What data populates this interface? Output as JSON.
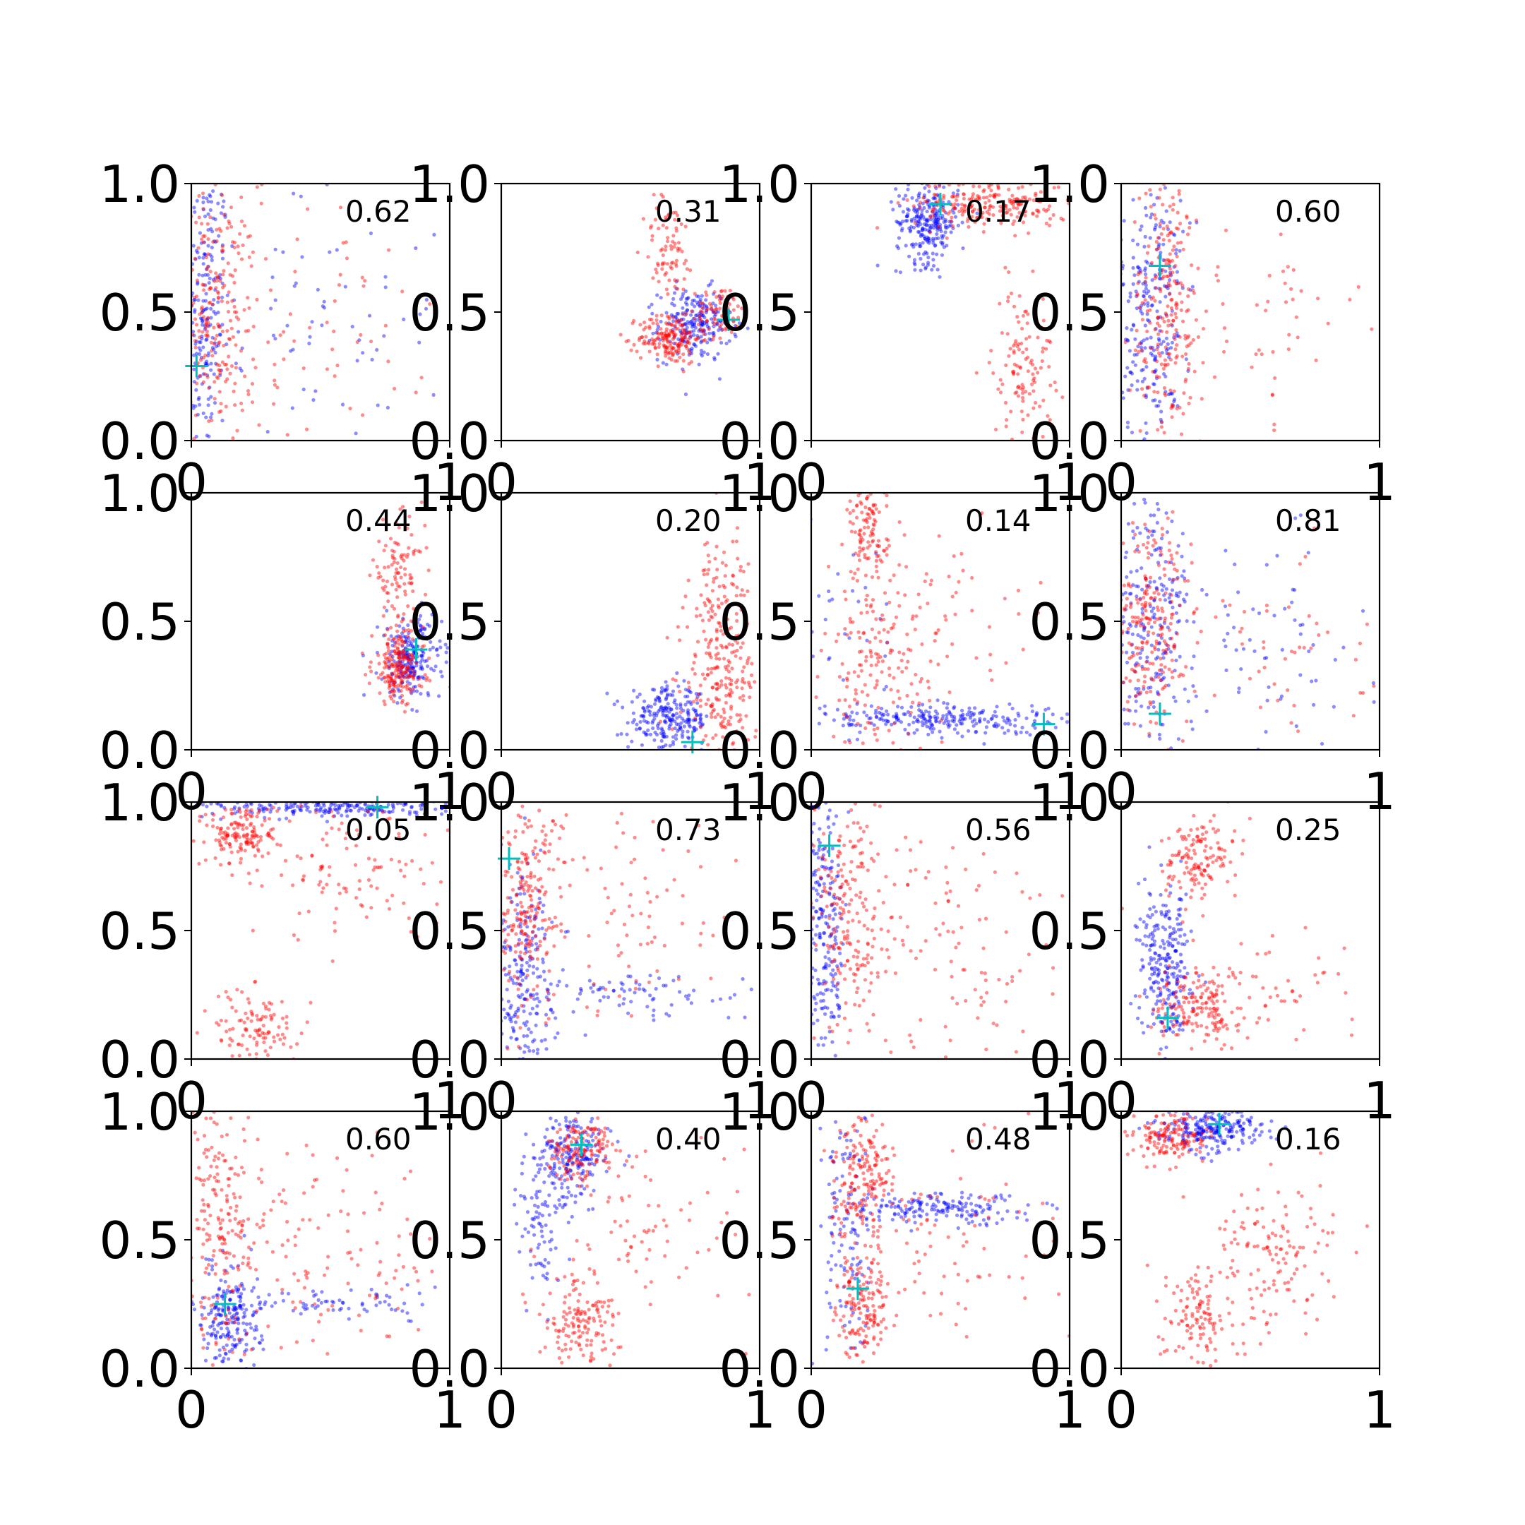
{
  "figure": {
    "colors": {
      "series_a": "#0000ff",
      "series_b": "#ff0000",
      "marker": "#00bfbf",
      "axes": "#000000"
    },
    "xticks": [
      "0",
      "1"
    ],
    "yticks": [
      "0.0",
      "0.5",
      "1.0"
    ]
  },
  "chart_data": [
    {
      "type": "scatter",
      "annotation": "0.62",
      "xlim": [
        0,
        1
      ],
      "ylim": [
        0,
        1
      ],
      "marker": [
        0.02,
        0.29
      ],
      "clusters": {
        "series_a": [
          {
            "cx": 0.05,
            "cy": 0.5,
            "sx": 0.05,
            "sy": 0.3,
            "n": 220
          },
          {
            "cx": 0.4,
            "cy": 0.45,
            "sx": 0.3,
            "sy": 0.3,
            "n": 90
          }
        ],
        "series_b": [
          {
            "cx": 0.1,
            "cy": 0.5,
            "sx": 0.08,
            "sy": 0.25,
            "n": 220
          },
          {
            "cx": 0.4,
            "cy": 0.4,
            "sx": 0.25,
            "sy": 0.25,
            "n": 80
          }
        ]
      }
    },
    {
      "type": "scatter",
      "annotation": "0.31",
      "xlim": [
        0,
        1
      ],
      "ylim": [
        0,
        1
      ],
      "marker": [
        0.88,
        0.47
      ],
      "clusters": {
        "series_a": [
          {
            "cx": 0.75,
            "cy": 0.45,
            "sx": 0.07,
            "sy": 0.07,
            "n": 220
          }
        ],
        "series_b": [
          {
            "cx": 0.65,
            "cy": 0.4,
            "sx": 0.06,
            "sy": 0.05,
            "n": 180
          },
          {
            "cx": 0.65,
            "cy": 0.75,
            "sx": 0.05,
            "sy": 0.1,
            "n": 80
          },
          {
            "cx": 0.85,
            "cy": 0.5,
            "sx": 0.05,
            "sy": 0.05,
            "n": 80
          }
        ]
      }
    },
    {
      "type": "scatter",
      "annotation": "0.17",
      "xlim": [
        0,
        1
      ],
      "ylim": [
        0,
        1
      ],
      "marker": [
        0.5,
        0.92
      ],
      "clusters": {
        "series_a": [
          {
            "cx": 0.45,
            "cy": 0.85,
            "sx": 0.06,
            "sy": 0.08,
            "n": 260
          }
        ],
        "series_b": [
          {
            "cx": 0.7,
            "cy": 0.92,
            "sx": 0.15,
            "sy": 0.05,
            "n": 220
          },
          {
            "cx": 0.82,
            "cy": 0.3,
            "sx": 0.06,
            "sy": 0.15,
            "n": 120
          }
        ]
      }
    },
    {
      "type": "scatter",
      "annotation": "0.60",
      "xlim": [
        0,
        1
      ],
      "ylim": [
        0,
        1
      ],
      "marker": [
        0.15,
        0.68
      ],
      "clusters": {
        "series_a": [
          {
            "cx": 0.12,
            "cy": 0.5,
            "sx": 0.06,
            "sy": 0.3,
            "n": 260
          }
        ],
        "series_b": [
          {
            "cx": 0.18,
            "cy": 0.5,
            "sx": 0.07,
            "sy": 0.3,
            "n": 240
          },
          {
            "cx": 0.5,
            "cy": 0.5,
            "sx": 0.2,
            "sy": 0.2,
            "n": 60
          }
        ]
      }
    },
    {
      "type": "scatter",
      "annotation": "0.44",
      "xlim": [
        0,
        1
      ],
      "ylim": [
        0,
        1
      ],
      "marker": [
        0.87,
        0.39
      ],
      "clusters": {
        "series_a": [
          {
            "cx": 0.85,
            "cy": 0.35,
            "sx": 0.06,
            "sy": 0.08,
            "n": 220
          }
        ],
        "series_b": [
          {
            "cx": 0.8,
            "cy": 0.32,
            "sx": 0.05,
            "sy": 0.07,
            "n": 200
          },
          {
            "cx": 0.8,
            "cy": 0.68,
            "sx": 0.05,
            "sy": 0.1,
            "n": 100
          }
        ]
      }
    },
    {
      "type": "scatter",
      "annotation": "0.20",
      "xlim": [
        0,
        1
      ],
      "ylim": [
        0,
        1
      ],
      "marker": [
        0.74,
        0.03
      ],
      "clusters": {
        "series_a": [
          {
            "cx": 0.65,
            "cy": 0.12,
            "sx": 0.08,
            "sy": 0.06,
            "n": 240
          }
        ],
        "series_b": [
          {
            "cx": 0.85,
            "cy": 0.25,
            "sx": 0.07,
            "sy": 0.15,
            "n": 200
          },
          {
            "cx": 0.85,
            "cy": 0.6,
            "sx": 0.06,
            "sy": 0.15,
            "n": 80
          }
        ]
      }
    },
    {
      "type": "scatter",
      "annotation": "0.14",
      "xlim": [
        0,
        1
      ],
      "ylim": [
        0,
        1
      ],
      "marker": [
        0.9,
        0.1
      ],
      "clusters": {
        "series_a": [
          {
            "cx": 0.5,
            "cy": 0.12,
            "sx": 0.25,
            "sy": 0.03,
            "n": 260
          },
          {
            "cx": 0.1,
            "cy": 0.5,
            "sx": 0.1,
            "sy": 0.3,
            "n": 40
          }
        ],
        "series_b": [
          {
            "cx": 0.22,
            "cy": 0.85,
            "sx": 0.04,
            "sy": 0.1,
            "n": 110
          },
          {
            "cx": 0.25,
            "cy": 0.3,
            "sx": 0.1,
            "sy": 0.2,
            "n": 160
          },
          {
            "cx": 0.5,
            "cy": 0.5,
            "sx": 0.2,
            "sy": 0.2,
            "n": 60
          }
        ]
      }
    },
    {
      "type": "scatter",
      "annotation": "0.81",
      "xlim": [
        0,
        1
      ],
      "ylim": [
        0,
        1
      ],
      "marker": [
        0.15,
        0.14
      ],
      "clusters": {
        "series_a": [
          {
            "cx": 0.12,
            "cy": 0.5,
            "sx": 0.08,
            "sy": 0.25,
            "n": 220
          },
          {
            "cx": 0.5,
            "cy": 0.4,
            "sx": 0.25,
            "sy": 0.2,
            "n": 80
          }
        ],
        "series_b": [
          {
            "cx": 0.12,
            "cy": 0.5,
            "sx": 0.07,
            "sy": 0.2,
            "n": 220
          },
          {
            "cx": 0.5,
            "cy": 0.4,
            "sx": 0.25,
            "sy": 0.2,
            "n": 60
          }
        ]
      }
    },
    {
      "type": "scatter",
      "annotation": "0.05",
      "xlim": [
        0,
        1
      ],
      "ylim": [
        0,
        1
      ],
      "marker": [
        0.72,
        0.98
      ],
      "clusters": {
        "series_a": [
          {
            "cx": 0.55,
            "cy": 0.98,
            "sx": 0.25,
            "sy": 0.02,
            "n": 240
          }
        ],
        "series_b": [
          {
            "cx": 0.2,
            "cy": 0.88,
            "sx": 0.07,
            "sy": 0.06,
            "n": 150
          },
          {
            "cx": 0.25,
            "cy": 0.12,
            "sx": 0.08,
            "sy": 0.08,
            "n": 110
          },
          {
            "cx": 0.6,
            "cy": 0.75,
            "sx": 0.2,
            "sy": 0.15,
            "n": 120
          }
        ]
      }
    },
    {
      "type": "scatter",
      "annotation": "0.73",
      "xlim": [
        0,
        1
      ],
      "ylim": [
        0,
        1
      ],
      "marker": [
        0.03,
        0.78
      ],
      "clusters": {
        "series_a": [
          {
            "cx": 0.08,
            "cy": 0.35,
            "sx": 0.06,
            "sy": 0.2,
            "n": 220
          },
          {
            "cx": 0.5,
            "cy": 0.25,
            "sx": 0.25,
            "sy": 0.05,
            "n": 80
          }
        ],
        "series_b": [
          {
            "cx": 0.1,
            "cy": 0.6,
            "sx": 0.07,
            "sy": 0.2,
            "n": 220
          },
          {
            "cx": 0.5,
            "cy": 0.55,
            "sx": 0.2,
            "sy": 0.2,
            "n": 80
          }
        ]
      }
    },
    {
      "type": "scatter",
      "annotation": "0.56",
      "xlim": [
        0,
        1
      ],
      "ylim": [
        0,
        1
      ],
      "marker": [
        0.07,
        0.83
      ],
      "clusters": {
        "series_a": [
          {
            "cx": 0.05,
            "cy": 0.5,
            "sx": 0.04,
            "sy": 0.3,
            "n": 240
          }
        ],
        "series_b": [
          {
            "cx": 0.15,
            "cy": 0.55,
            "sx": 0.07,
            "sy": 0.25,
            "n": 200
          },
          {
            "cx": 0.55,
            "cy": 0.45,
            "sx": 0.25,
            "sy": 0.25,
            "n": 120
          }
        ]
      }
    },
    {
      "type": "scatter",
      "annotation": "0.25",
      "xlim": [
        0,
        1
      ],
      "ylim": [
        0,
        1
      ],
      "marker": [
        0.18,
        0.16
      ],
      "clusters": {
        "series_a": [
          {
            "cx": 0.17,
            "cy": 0.35,
            "sx": 0.05,
            "sy": 0.15,
            "n": 260
          }
        ],
        "series_b": [
          {
            "cx": 0.3,
            "cy": 0.78,
            "sx": 0.07,
            "sy": 0.08,
            "n": 140
          },
          {
            "cx": 0.3,
            "cy": 0.2,
            "sx": 0.08,
            "sy": 0.07,
            "n": 160
          },
          {
            "cx": 0.55,
            "cy": 0.3,
            "sx": 0.2,
            "sy": 0.15,
            "n": 60
          }
        ]
      }
    },
    {
      "type": "scatter",
      "annotation": "0.60",
      "xlim": [
        0,
        1
      ],
      "ylim": [
        0,
        1
      ],
      "marker": [
        0.13,
        0.25
      ],
      "clusters": {
        "series_a": [
          {
            "cx": 0.15,
            "cy": 0.2,
            "sx": 0.06,
            "sy": 0.1,
            "n": 200
          },
          {
            "cx": 0.55,
            "cy": 0.25,
            "sx": 0.25,
            "sy": 0.03,
            "n": 80
          }
        ],
        "series_b": [
          {
            "cx": 0.12,
            "cy": 0.6,
            "sx": 0.07,
            "sy": 0.3,
            "n": 200
          },
          {
            "cx": 0.5,
            "cy": 0.45,
            "sx": 0.25,
            "sy": 0.2,
            "n": 120
          }
        ]
      }
    },
    {
      "type": "scatter",
      "annotation": "0.40",
      "xlim": [
        0,
        1
      ],
      "ylim": [
        0,
        1
      ],
      "marker": [
        0.31,
        0.87
      ],
      "clusters": {
        "series_a": [
          {
            "cx": 0.28,
            "cy": 0.82,
            "sx": 0.07,
            "sy": 0.08,
            "n": 200
          },
          {
            "cx": 0.15,
            "cy": 0.55,
            "sx": 0.05,
            "sy": 0.15,
            "n": 80
          }
        ],
        "series_b": [
          {
            "cx": 0.3,
            "cy": 0.85,
            "sx": 0.06,
            "sy": 0.06,
            "n": 140
          },
          {
            "cx": 0.3,
            "cy": 0.18,
            "sx": 0.08,
            "sy": 0.08,
            "n": 140
          },
          {
            "cx": 0.55,
            "cy": 0.5,
            "sx": 0.2,
            "sy": 0.2,
            "n": 80
          }
        ]
      }
    },
    {
      "type": "scatter",
      "annotation": "0.48",
      "xlim": [
        0,
        1
      ],
      "ylim": [
        0,
        1
      ],
      "marker": [
        0.18,
        0.31
      ],
      "clusters": {
        "series_a": [
          {
            "cx": 0.5,
            "cy": 0.62,
            "sx": 0.2,
            "sy": 0.03,
            "n": 180
          },
          {
            "cx": 0.15,
            "cy": 0.5,
            "sx": 0.05,
            "sy": 0.25,
            "n": 120
          }
        ],
        "series_b": [
          {
            "cx": 0.2,
            "cy": 0.75,
            "sx": 0.06,
            "sy": 0.12,
            "n": 180
          },
          {
            "cx": 0.2,
            "cy": 0.25,
            "sx": 0.05,
            "sy": 0.1,
            "n": 160
          },
          {
            "cx": 0.55,
            "cy": 0.5,
            "sx": 0.2,
            "sy": 0.25,
            "n": 80
          }
        ]
      }
    },
    {
      "type": "scatter",
      "annotation": "0.16",
      "xlim": [
        0,
        1
      ],
      "ylim": [
        0,
        1
      ],
      "marker": [
        0.38,
        0.95
      ],
      "clusters": {
        "series_a": [
          {
            "cx": 0.35,
            "cy": 0.93,
            "sx": 0.1,
            "sy": 0.04,
            "n": 240
          }
        ],
        "series_b": [
          {
            "cx": 0.2,
            "cy": 0.9,
            "sx": 0.07,
            "sy": 0.05,
            "n": 150
          },
          {
            "cx": 0.3,
            "cy": 0.2,
            "sx": 0.07,
            "sy": 0.1,
            "n": 120
          },
          {
            "cx": 0.6,
            "cy": 0.45,
            "sx": 0.12,
            "sy": 0.15,
            "n": 130
          }
        ]
      }
    }
  ]
}
